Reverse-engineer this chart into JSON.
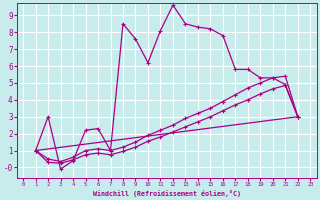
{
  "xlabel": "Windchill (Refroidissement éolien,°C)",
  "bg_color": "#c8ecec",
  "line_color": "#aa0088",
  "grid_color": "#ffffff",
  "xlim": [
    -0.5,
    23.5
  ],
  "ylim": [
    -0.6,
    9.7
  ],
  "xticks": [
    0,
    1,
    2,
    3,
    4,
    5,
    6,
    7,
    8,
    9,
    10,
    11,
    12,
    13,
    14,
    15,
    16,
    17,
    18,
    19,
    20,
    21,
    22,
    23
  ],
  "yticks": [
    0,
    1,
    2,
    3,
    4,
    5,
    6,
    7,
    8,
    9
  ],
  "curve1_x": [
    1,
    2,
    3,
    4,
    5,
    6,
    7,
    8,
    9,
    10,
    11,
    12,
    13,
    14,
    15,
    16,
    17,
    18,
    19,
    20,
    21,
    22
  ],
  "curve1_y": [
    1.0,
    3.0,
    -0.1,
    0.4,
    2.2,
    2.3,
    1.0,
    8.5,
    7.6,
    6.2,
    8.1,
    9.6,
    8.5,
    8.3,
    8.2,
    7.8,
    5.8,
    5.8,
    5.3,
    5.3,
    4.9,
    3.0
  ],
  "curve2_x": [
    1,
    2,
    3,
    4,
    5,
    6,
    7,
    8,
    9,
    10,
    11,
    12,
    13,
    14,
    15,
    16,
    17,
    18,
    19,
    20,
    21,
    22
  ],
  "curve2_y": [
    1.0,
    0.5,
    0.35,
    0.6,
    1.0,
    1.1,
    1.0,
    1.2,
    1.5,
    1.9,
    2.2,
    2.5,
    2.9,
    3.2,
    3.5,
    3.9,
    4.3,
    4.7,
    5.0,
    5.3,
    5.4,
    3.0
  ],
  "curve3_x": [
    1,
    2,
    3,
    4,
    5,
    6,
    7,
    8,
    9,
    10,
    11,
    12,
    13,
    14,
    15,
    16,
    17,
    18,
    19,
    20,
    21,
    22
  ],
  "curve3_y": [
    1.0,
    0.3,
    0.25,
    0.45,
    0.75,
    0.85,
    0.75,
    0.95,
    1.2,
    1.55,
    1.8,
    2.1,
    2.4,
    2.7,
    3.0,
    3.35,
    3.7,
    4.0,
    4.35,
    4.65,
    4.85,
    3.0
  ],
  "curve4_x": [
    1,
    22
  ],
  "curve4_y": [
    1.0,
    3.0
  ]
}
